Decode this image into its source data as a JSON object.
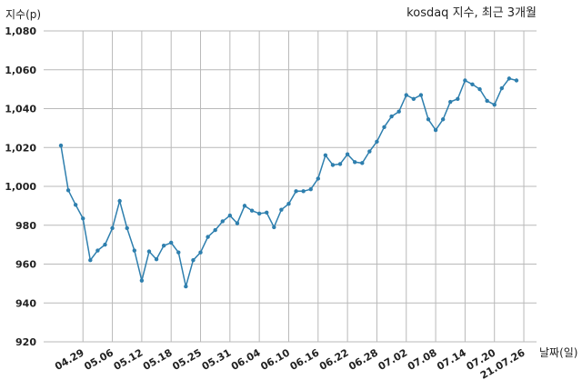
{
  "chart_data": {
    "type": "line",
    "title": "kosdaq 지수, 최근 3개월",
    "xlabel": "날짜(일)",
    "ylabel": "지수(p)",
    "ylim": [
      920,
      1080
    ],
    "yticks": [
      920,
      940,
      960,
      980,
      1000,
      1020,
      1040,
      1060,
      1080
    ],
    "ytick_labels": [
      "920",
      "940",
      "960",
      "980",
      "1,000",
      "1,020",
      "1,040",
      "1,060",
      "1,080"
    ],
    "xticks": [
      {
        "index": 3,
        "label": "04.29"
      },
      {
        "index": 7,
        "label": "05.06"
      },
      {
        "index": 11,
        "label": "05.12"
      },
      {
        "index": 15,
        "label": "05.18"
      },
      {
        "index": 19,
        "label": "05.25"
      },
      {
        "index": 23,
        "label": "05.31"
      },
      {
        "index": 27,
        "label": "06.04"
      },
      {
        "index": 31,
        "label": "06.10"
      },
      {
        "index": 35,
        "label": "06.16"
      },
      {
        "index": 39,
        "label": "06.22"
      },
      {
        "index": 43,
        "label": "06.28"
      },
      {
        "index": 47,
        "label": "07.02"
      },
      {
        "index": 51,
        "label": "07.08"
      },
      {
        "index": 55,
        "label": "07.14"
      },
      {
        "index": 59,
        "label": "07.20"
      },
      {
        "index": 63,
        "label": "21.07.26"
      }
    ],
    "grid": true,
    "line_color": "#2e7fae",
    "series": [
      {
        "values": [
          1021,
          998,
          990.5,
          983.5,
          962,
          967,
          970,
          978.5,
          992.5,
          978.5,
          967,
          951.5,
          966.5,
          962.5,
          969.5,
          971,
          966,
          948.5,
          962,
          966,
          974,
          977.5,
          982,
          985,
          981,
          990,
          987.5,
          986,
          986.5,
          979,
          988,
          991,
          997.5,
          997.5,
          998.5,
          1004,
          1016,
          1011,
          1011.5,
          1016.5,
          1012.5,
          1012,
          1018,
          1023,
          1030.5,
          1036,
          1038.5,
          1047,
          1045,
          1047,
          1034.5,
          1029,
          1034.5,
          1043.5,
          1045,
          1054.5,
          1052.5,
          1050,
          1044,
          1042,
          1050.5,
          1055.5,
          1054.5
        ]
      }
    ]
  }
}
